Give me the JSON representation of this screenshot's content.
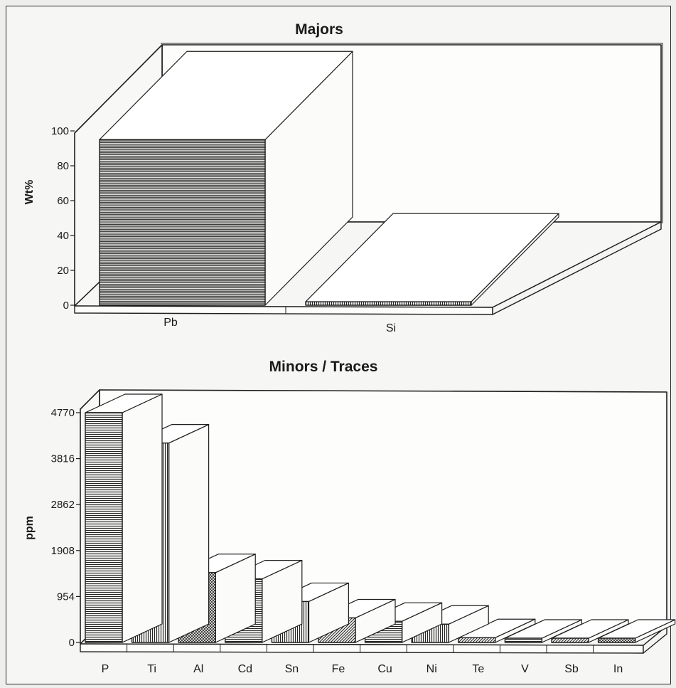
{
  "chart_data": [
    {
      "type": "bar",
      "title": "Majors",
      "xlabel": "",
      "ylabel": "Wt%",
      "categories": [
        "Pb",
        "Si"
      ],
      "values": [
        95,
        2
      ],
      "ylim": [
        0,
        100
      ],
      "yticks": [
        "0",
        "20",
        "40",
        "60",
        "80",
        "100"
      ],
      "style": "3d",
      "grid": false,
      "legend": "none"
    },
    {
      "type": "bar",
      "title": "Minors / Traces",
      "xlabel": "",
      "ylabel": "ppm",
      "categories": [
        "P",
        "Ti",
        "Al",
        "Cd",
        "Sn",
        "Fe",
        "Cu",
        "Ni",
        "Te",
        "V",
        "Sb",
        "In"
      ],
      "values": [
        4770,
        4140,
        1450,
        1320,
        850,
        510,
        440,
        380,
        100,
        60,
        70,
        50
      ],
      "ylim": [
        0,
        4770
      ],
      "yticks": [
        "0",
        "954",
        "1908",
        "2862",
        "3816",
        "4770"
      ],
      "style": "3d",
      "grid": false,
      "legend": "none"
    }
  ]
}
